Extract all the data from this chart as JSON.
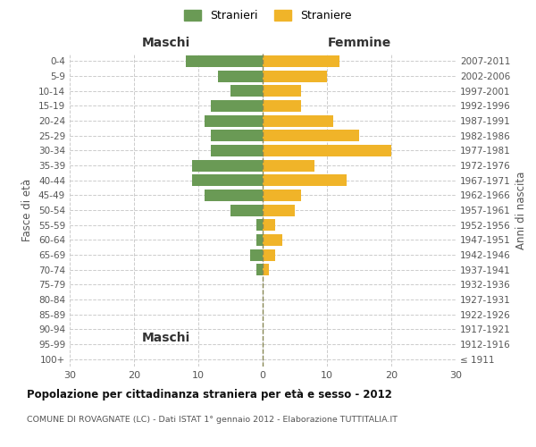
{
  "age_groups": [
    "100+",
    "95-99",
    "90-94",
    "85-89",
    "80-84",
    "75-79",
    "70-74",
    "65-69",
    "60-64",
    "55-59",
    "50-54",
    "45-49",
    "40-44",
    "35-39",
    "30-34",
    "25-29",
    "20-24",
    "15-19",
    "10-14",
    "5-9",
    "0-4"
  ],
  "birth_years": [
    "≤ 1911",
    "1912-1916",
    "1917-1921",
    "1922-1926",
    "1927-1931",
    "1932-1936",
    "1937-1941",
    "1942-1946",
    "1947-1951",
    "1952-1956",
    "1957-1961",
    "1962-1966",
    "1967-1971",
    "1972-1976",
    "1977-1981",
    "1982-1986",
    "1987-1991",
    "1992-1996",
    "1997-2001",
    "2002-2006",
    "2007-2011"
  ],
  "maschi": [
    0,
    0,
    0,
    0,
    0,
    0,
    1,
    2,
    1,
    1,
    5,
    9,
    11,
    11,
    8,
    8,
    9,
    8,
    5,
    7,
    12
  ],
  "femmine": [
    0,
    0,
    0,
    0,
    0,
    0,
    1,
    2,
    3,
    2,
    5,
    6,
    13,
    8,
    20,
    15,
    11,
    6,
    6,
    10,
    12
  ],
  "maschi_color": "#6a9a55",
  "femmine_color": "#f0b429",
  "title": "Popolazione per cittadinanza straniera per età e sesso - 2012",
  "subtitle": "COMUNE DI ROVAGNATE (LC) - Dati ISTAT 1° gennaio 2012 - Elaborazione TUTTITALIA.IT",
  "xlabel_left": "Maschi",
  "xlabel_right": "Femmine",
  "ylabel_left": "Fasce di età",
  "ylabel_right": "Anni di nascita",
  "xlim": 30,
  "legend_stranieri": "Stranieri",
  "legend_straniere": "Straniere",
  "background_color": "#ffffff",
  "grid_color": "#cccccc"
}
